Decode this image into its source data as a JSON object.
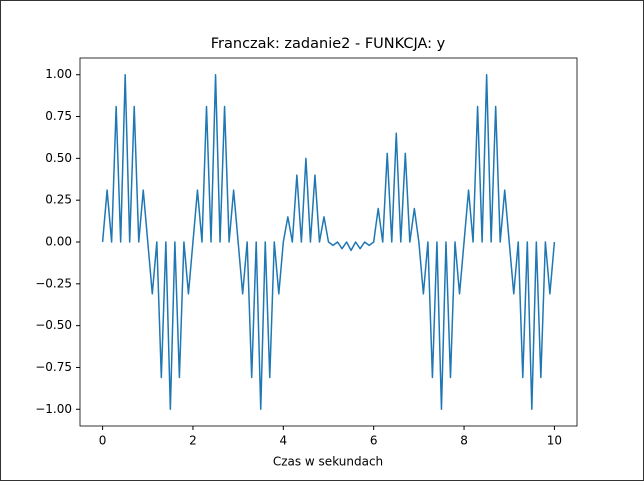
{
  "chart_data": {
    "type": "line",
    "title": "Franczak: zadanie2 - FUNKCJA: y",
    "xlabel": "Czas w sekundach",
    "x": [
      0,
      0.1,
      0.2,
      0.3,
      0.4,
      0.5,
      0.6,
      0.7,
      0.8,
      0.9,
      1,
      1.1,
      1.2,
      1.3,
      1.4,
      1.5,
      1.6,
      1.7,
      1.8,
      1.9,
      2,
      2.1,
      2.2,
      2.3,
      2.4,
      2.5,
      2.6,
      2.7,
      2.8,
      2.9,
      3,
      3.1,
      3.2,
      3.3,
      3.4,
      3.5,
      3.6,
      3.7,
      3.8,
      3.9,
      4,
      4.1,
      4.2,
      4.3,
      4.4,
      4.5,
      4.6,
      4.7,
      4.8,
      4.9,
      5,
      5.1,
      5.2,
      5.3,
      5.4,
      5.5,
      5.6,
      5.7,
      5.8,
      5.9,
      6,
      6.1,
      6.2,
      6.3,
      6.4,
      6.5,
      6.6,
      6.7,
      6.8,
      6.9,
      7,
      7.1,
      7.2,
      7.3,
      7.4,
      7.5,
      7.6,
      7.7,
      7.8,
      7.9,
      8,
      8.1,
      8.2,
      8.3,
      8.4,
      8.5,
      8.6,
      8.7,
      8.8,
      8.9,
      9,
      9.1,
      9.2,
      9.3,
      9.4,
      9.5,
      9.6,
      9.7,
      9.8,
      9.9,
      10
    ],
    "series": [
      {
        "color": "#1f77b4",
        "values": [
          0,
          0.31,
          0,
          0.81,
          0,
          1,
          0,
          0.81,
          0,
          0.31,
          0,
          -0.31,
          0,
          -0.81,
          0,
          -1,
          0,
          -0.81,
          0,
          -0.31,
          0,
          0.31,
          0,
          0.81,
          0,
          1,
          0,
          0.81,
          0,
          0.31,
          0,
          -0.31,
          0,
          -0.81,
          0,
          -1,
          0,
          -0.81,
          0,
          -0.31,
          0,
          0.15,
          0,
          0.4,
          0,
          0.5,
          0,
          0.4,
          0,
          0.15,
          0,
          -0.02,
          0,
          -0.04,
          0,
          -0.05,
          0,
          -0.04,
          0,
          -0.02,
          0,
          0.2,
          0,
          0.53,
          0,
          0.65,
          0,
          0.53,
          0,
          0.2,
          0,
          -0.31,
          0,
          -0.81,
          0,
          -1,
          0,
          -0.81,
          0,
          -0.31,
          0,
          0.31,
          0,
          0.81,
          0,
          1,
          0,
          0.81,
          0,
          0.31,
          0,
          -0.31,
          0,
          -0.81,
          0,
          -1,
          0,
          -0.81,
          0,
          -0.31,
          0
        ]
      }
    ],
    "xlim": [
      -0.5,
      10.5
    ],
    "ylim": [
      -1.1,
      1.1
    ],
    "xticks": [
      0,
      2,
      4,
      6,
      8,
      10
    ],
    "yticks": [
      {
        "value": -1,
        "label": "−1.00"
      },
      {
        "value": -0.75,
        "label": "−0.75"
      },
      {
        "value": -0.5,
        "label": "−0.50"
      },
      {
        "value": -0.25,
        "label": "−0.25"
      },
      {
        "value": 0,
        "label": "0.00"
      },
      {
        "value": 0.25,
        "label": "0.25"
      },
      {
        "value": 0.5,
        "label": "0.50"
      },
      {
        "value": 0.75,
        "label": "0.75"
      },
      {
        "value": 1,
        "label": "1.00"
      }
    ]
  }
}
